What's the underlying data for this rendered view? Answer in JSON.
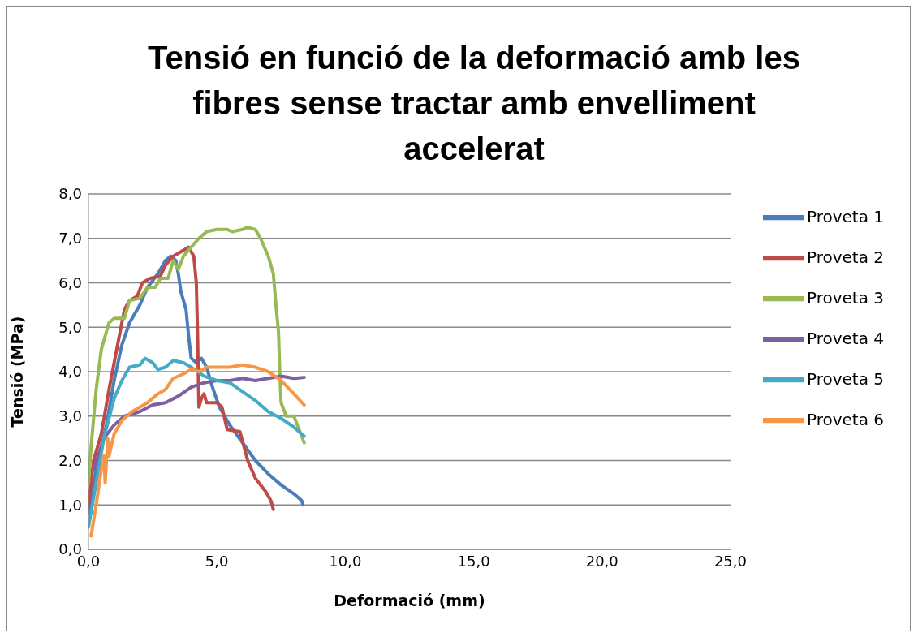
{
  "chart_data": {
    "type": "line",
    "title": "Tensió en funció de la deformació amb les fibres sense tractar amb envelliment accelerat",
    "xlabel": "Deformació (mm)",
    "ylabel": "Tensió (MPa)",
    "xlim": [
      0,
      25
    ],
    "xticks": [
      {
        "value": 0,
        "label": "0,0"
      },
      {
        "value": 5,
        "label": "5,0"
      },
      {
        "value": 10,
        "label": "10,0"
      },
      {
        "value": 15,
        "label": "15,0"
      },
      {
        "value": 20,
        "label": "20,0"
      },
      {
        "value": 25,
        "label": "25,0"
      }
    ],
    "ylim": [
      0,
      8
    ],
    "yticks": [
      {
        "value": 0,
        "label": "0,0"
      },
      {
        "value": 1,
        "label": "1,0"
      },
      {
        "value": 2,
        "label": "2,0"
      },
      {
        "value": 3,
        "label": "3,0"
      },
      {
        "value": 4,
        "label": "4,0"
      },
      {
        "value": 5,
        "label": "5,0"
      },
      {
        "value": 6,
        "label": "6,0"
      },
      {
        "value": 7,
        "label": "7,0"
      },
      {
        "value": 8,
        "label": "8,0"
      }
    ],
    "grid": "y",
    "legend": "right",
    "marker": "none",
    "line_style": "solid",
    "series": [
      {
        "name": "Proveta 1",
        "color": "#4a7ebb",
        "x": [
          0,
          0.3,
          0.7,
          1.0,
          1.3,
          1.6,
          2.0,
          2.3,
          2.7,
          3.0,
          3.2,
          3.4,
          3.5,
          3.6,
          3.8,
          3.9,
          4.0,
          4.2,
          4.4,
          4.6,
          4.8,
          5.1,
          5.5,
          6.0,
          6.5,
          7.0,
          7.5,
          8.0,
          8.3,
          8.35
        ],
        "values": [
          0.8,
          1.8,
          2.8,
          3.8,
          4.6,
          5.1,
          5.5,
          5.9,
          6.2,
          6.5,
          6.6,
          6.5,
          6.2,
          5.8,
          5.4,
          4.8,
          4.3,
          4.2,
          4.3,
          4.1,
          3.7,
          3.2,
          2.8,
          2.4,
          2.0,
          1.7,
          1.45,
          1.25,
          1.1,
          1.0
        ]
      },
      {
        "name": "Proveta 2",
        "color": "#be4b48",
        "x": [
          0,
          0.2,
          0.5,
          0.8,
          1.1,
          1.4,
          1.6,
          1.9,
          2.1,
          2.4,
          2.8,
          3.0,
          3.3,
          3.6,
          3.9,
          4.1,
          4.2,
          4.25,
          4.3,
          4.4,
          4.5,
          4.6,
          5.0,
          5.2,
          5.4,
          5.9,
          6.2,
          6.5,
          6.9,
          7.1,
          7.2
        ],
        "values": [
          1.0,
          2.0,
          2.6,
          3.6,
          4.5,
          5.4,
          5.6,
          5.7,
          6.0,
          6.1,
          6.15,
          6.4,
          6.6,
          6.7,
          6.8,
          6.6,
          6.0,
          4.8,
          3.2,
          3.4,
          3.5,
          3.3,
          3.3,
          3.2,
          2.7,
          2.65,
          2.0,
          1.6,
          1.3,
          1.1,
          0.9
        ]
      },
      {
        "name": "Proveta 3",
        "color": "#98b954",
        "x": [
          0,
          0.1,
          0.3,
          0.5,
          0.8,
          1.0,
          1.4,
          1.6,
          2.0,
          2.3,
          2.6,
          2.8,
          3.1,
          3.3,
          3.5,
          3.7,
          4.0,
          4.3,
          4.6,
          5.0,
          5.4,
          5.6,
          6.0,
          6.2,
          6.5,
          6.7,
          7.0,
          7.2,
          7.3,
          7.4,
          7.45,
          7.5,
          7.7,
          8.0,
          8.2,
          8.4
        ],
        "values": [
          1.5,
          2.3,
          3.6,
          4.5,
          5.1,
          5.2,
          5.2,
          5.6,
          5.65,
          5.9,
          5.9,
          6.1,
          6.1,
          6.5,
          6.3,
          6.6,
          6.8,
          7.0,
          7.15,
          7.2,
          7.2,
          7.15,
          7.2,
          7.25,
          7.2,
          7.0,
          6.6,
          6.2,
          5.5,
          4.9,
          4.0,
          3.3,
          3.0,
          3.0,
          2.7,
          2.4
        ]
      },
      {
        "name": "Proveta 4",
        "color": "#7d60a0",
        "x": [
          0.2,
          0.6,
          1.0,
          1.4,
          2.0,
          2.5,
          3.0,
          3.5,
          4.0,
          4.5,
          5.0,
          5.5,
          6.0,
          6.5,
          7.0,
          7.5,
          8.0,
          8.4
        ],
        "values": [
          1.8,
          2.5,
          2.8,
          3.0,
          3.1,
          3.25,
          3.3,
          3.45,
          3.65,
          3.75,
          3.8,
          3.8,
          3.85,
          3.8,
          3.85,
          3.9,
          3.85,
          3.87
        ]
      },
      {
        "name": "Proveta 5",
        "color": "#46aac5",
        "x": [
          0,
          0.3,
          0.6,
          1.0,
          1.3,
          1.6,
          2.0,
          2.2,
          2.5,
          2.7,
          3.0,
          3.3,
          3.7,
          4.0,
          4.5,
          5.0,
          5.5,
          6.0,
          6.5,
          7.0,
          7.5,
          8.0,
          8.4
        ],
        "values": [
          0.5,
          1.5,
          2.5,
          3.4,
          3.8,
          4.1,
          4.15,
          4.3,
          4.2,
          4.05,
          4.1,
          4.25,
          4.2,
          4.1,
          3.9,
          3.8,
          3.75,
          3.55,
          3.35,
          3.1,
          2.95,
          2.75,
          2.55
        ]
      },
      {
        "name": "Proveta 6",
        "color": "#f79646",
        "x": [
          0.1,
          0.3,
          0.5,
          0.6,
          0.65,
          0.75,
          0.8,
          1.0,
          1.3,
          1.7,
          2.3,
          2.7,
          3.0,
          3.3,
          3.7,
          4.0,
          4.3,
          4.6,
          5.5,
          6.0,
          6.5,
          7.0,
          7.5,
          8.0,
          8.4
        ],
        "values": [
          0.3,
          1.0,
          1.8,
          2.1,
          1.5,
          2.5,
          2.1,
          2.6,
          2.9,
          3.1,
          3.3,
          3.5,
          3.6,
          3.85,
          3.95,
          4.05,
          4.0,
          4.1,
          4.1,
          4.15,
          4.1,
          4.0,
          3.8,
          3.5,
          3.25
        ]
      }
    ]
  }
}
